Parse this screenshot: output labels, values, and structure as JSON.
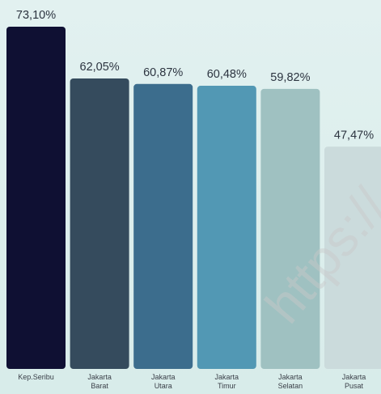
{
  "chart_data": {
    "type": "bar",
    "categories": [
      [
        "Kep.Seribu"
      ],
      [
        "Jakarta",
        "Barat"
      ],
      [
        "Jakarta",
        "Utara"
      ],
      [
        "Jakarta",
        "Timur"
      ],
      [
        "Jakarta",
        "Selatan"
      ],
      [
        "Jakarta",
        "Pusat"
      ]
    ],
    "values": [
      73.1,
      62.05,
      60.87,
      60.48,
      59.82,
      47.47
    ],
    "value_labels": [
      "73,10%",
      "62,05%",
      "60,87%",
      "60,48%",
      "59,82%",
      "47,47%"
    ],
    "colors": [
      "#0f1033",
      "#354b5d",
      "#3c6d8d",
      "#5298b4",
      "#9fc1c1",
      "#cbdbdc"
    ],
    "ylim": [
      0,
      73.1
    ],
    "grid": false,
    "legend": "none"
  },
  "watermark_text": "https://"
}
